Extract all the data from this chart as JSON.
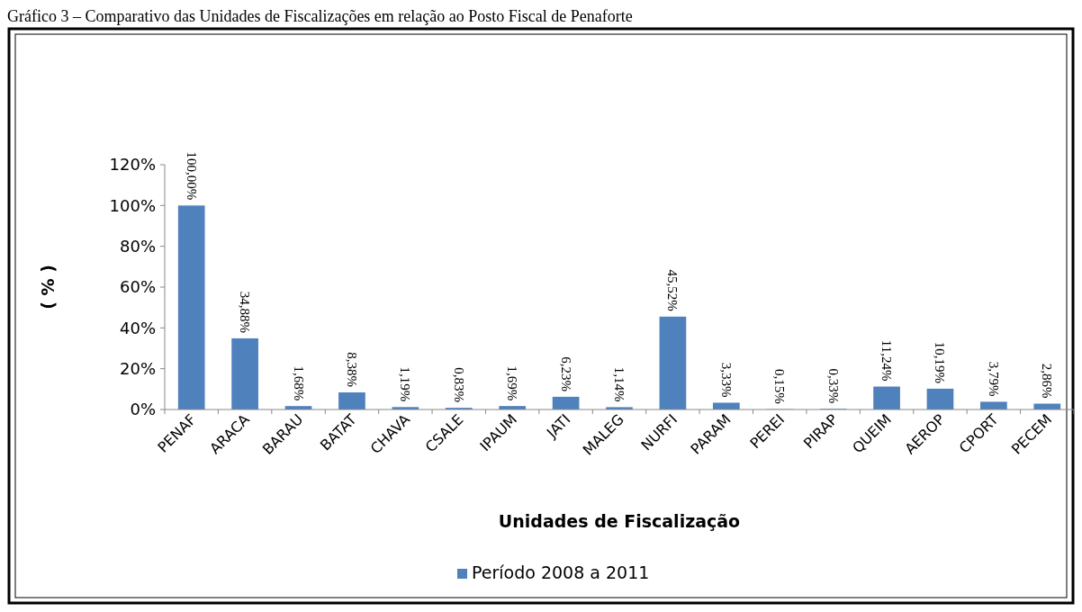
{
  "chart_data": {
    "type": "bar",
    "title": "Gráfico 3 – Comparativo das Unidades de Fiscalizações em relação ao Posto Fiscal de Penaforte",
    "categories": [
      "PENAF",
      "ARACA",
      "BARAU",
      "BATAT",
      "CHAVA",
      "CSALE",
      "IPAUM",
      "JATI",
      "MALEG",
      "NURFI",
      "PARAM",
      "PEREI",
      "PIRAP",
      "QUEIM",
      "AEROP",
      "CPORT",
      "PECEM"
    ],
    "series": [
      {
        "name": "Período 2008 a 2011",
        "color": "#4f81bd",
        "values": [
          100,
          34.88,
          1.68,
          8.38,
          1.19,
          0.83,
          1.69,
          6.23,
          1.14,
          45.52,
          3.33,
          0.15,
          0.33,
          11.24,
          10.19,
          3.79,
          2.86
        ],
        "value_labels": [
          "100,00%",
          "34,88%",
          "1,68%",
          "8,38%",
          "1,19%",
          "0,83%",
          "1,69%",
          "6,23%",
          "1,14%",
          "45,52%",
          "3,33%",
          "0,15%",
          "0,33%",
          "11,24%",
          "10,19%",
          "3,79%",
          "2,86%"
        ]
      }
    ],
    "ylim": [
      0,
      120
    ],
    "yticks": [
      {
        "value": 0,
        "label": "0%"
      },
      {
        "value": 20,
        "label": "20%"
      },
      {
        "value": 40,
        "label": "40%"
      },
      {
        "value": 60,
        "label": "60%"
      },
      {
        "value": 80,
        "label": "80%"
      },
      {
        "value": 100,
        "label": "100%"
      },
      {
        "value": 120,
        "label": "120%"
      }
    ],
    "xlabel": "Unidades de Fiscalização",
    "ylabel": "( % )",
    "legend": "bottom",
    "grid": false
  }
}
